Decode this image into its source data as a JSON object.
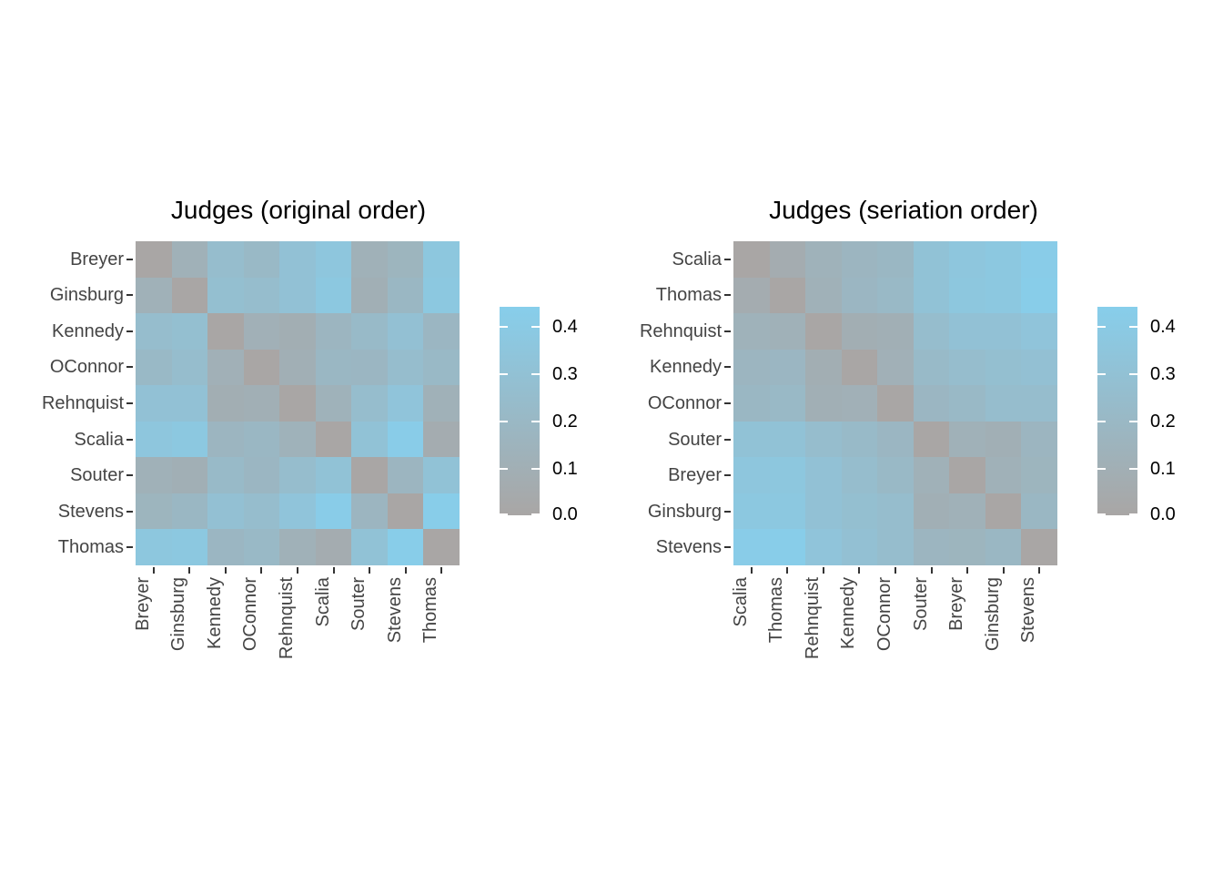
{
  "figure_background": "#ffffff",
  "scale": {
    "low_color": "#A9A6A5",
    "high_color": "#87CEEB",
    "min": 0,
    "max": 0.44
  },
  "legend": {
    "tick_labels": [
      "0.4",
      "0.3",
      "0.2",
      "0.1",
      "0.0"
    ],
    "tick_values": [
      0.4,
      0.3,
      0.2,
      0.1,
      0.0
    ]
  },
  "chart_data": [
    {
      "type": "heatmap",
      "title": "Judges (original order)",
      "rows": [
        "Breyer",
        "Ginsburg",
        "Kennedy",
        "OConnor",
        "Rehnquist",
        "Scalia",
        "Souter",
        "Stevens",
        "Thomas"
      ],
      "cols": [
        "Breyer",
        "Ginsburg",
        "Kennedy",
        "OConnor",
        "Rehnquist",
        "Scalia",
        "Souter",
        "Stevens",
        "Thomas"
      ],
      "values": [
        [
          0.0,
          0.12,
          0.25,
          0.21,
          0.3,
          0.35,
          0.12,
          0.16,
          0.36
        ],
        [
          0.12,
          0.0,
          0.27,
          0.25,
          0.3,
          0.37,
          0.1,
          0.19,
          0.37
        ],
        [
          0.25,
          0.27,
          0.0,
          0.11,
          0.09,
          0.17,
          0.22,
          0.29,
          0.18
        ],
        [
          0.21,
          0.25,
          0.11,
          0.0,
          0.1,
          0.19,
          0.18,
          0.25,
          0.21
        ],
        [
          0.3,
          0.3,
          0.09,
          0.1,
          0.0,
          0.13,
          0.25,
          0.33,
          0.12
        ],
        [
          0.35,
          0.37,
          0.17,
          0.19,
          0.13,
          0.0,
          0.31,
          0.42,
          0.07
        ],
        [
          0.12,
          0.1,
          0.22,
          0.18,
          0.25,
          0.31,
          0.0,
          0.17,
          0.31
        ],
        [
          0.16,
          0.19,
          0.29,
          0.25,
          0.33,
          0.42,
          0.17,
          0.0,
          0.43
        ],
        [
          0.36,
          0.37,
          0.18,
          0.21,
          0.12,
          0.07,
          0.31,
          0.43,
          0.0
        ]
      ],
      "legend_position": "right",
      "grid": false
    },
    {
      "type": "heatmap",
      "title": "Judges (seriation order)",
      "rows": [
        "Scalia",
        "Thomas",
        "Rehnquist",
        "Kennedy",
        "OConnor",
        "Souter",
        "Breyer",
        "Ginsburg",
        "Stevens"
      ],
      "cols": [
        "Scalia",
        "Thomas",
        "Rehnquist",
        "Kennedy",
        "OConnor",
        "Souter",
        "Breyer",
        "Ginsburg",
        "Stevens"
      ],
      "values": [
        [
          0.0,
          0.07,
          0.13,
          0.17,
          0.19,
          0.31,
          0.35,
          0.37,
          0.42
        ],
        [
          0.07,
          0.0,
          0.12,
          0.18,
          0.21,
          0.31,
          0.36,
          0.37,
          0.43
        ],
        [
          0.13,
          0.12,
          0.0,
          0.09,
          0.1,
          0.25,
          0.3,
          0.3,
          0.33
        ],
        [
          0.17,
          0.18,
          0.09,
          0.0,
          0.11,
          0.22,
          0.25,
          0.27,
          0.29
        ],
        [
          0.19,
          0.21,
          0.1,
          0.11,
          0.0,
          0.18,
          0.21,
          0.25,
          0.25
        ],
        [
          0.31,
          0.31,
          0.25,
          0.22,
          0.18,
          0.0,
          0.12,
          0.1,
          0.17
        ],
        [
          0.35,
          0.36,
          0.3,
          0.25,
          0.21,
          0.12,
          0.0,
          0.12,
          0.16
        ],
        [
          0.37,
          0.37,
          0.3,
          0.27,
          0.25,
          0.1,
          0.12,
          0.0,
          0.19
        ],
        [
          0.42,
          0.43,
          0.33,
          0.29,
          0.25,
          0.17,
          0.16,
          0.19,
          0.0
        ]
      ],
      "legend_position": "right",
      "grid": false
    }
  ]
}
